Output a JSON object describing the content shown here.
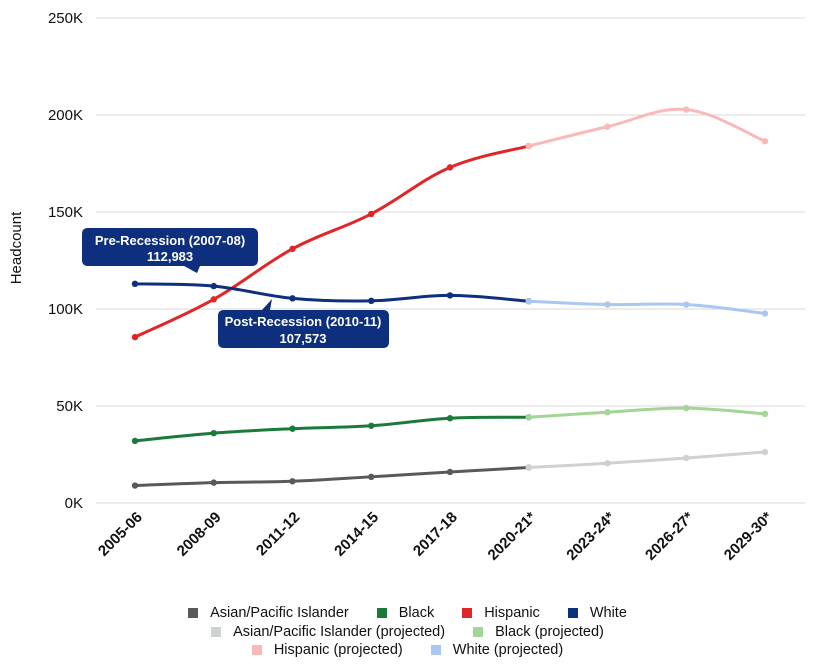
{
  "chart_data": {
    "type": "line",
    "ylabel": "Headcount",
    "xlabel": "",
    "ylim": [
      0,
      250000
    ],
    "yticks": [
      0,
      50000,
      100000,
      150000,
      200000,
      250000
    ],
    "ytick_labels": [
      "0K",
      "50K",
      "100K",
      "150K",
      "200K",
      "250K"
    ],
    "grid": "horizontal",
    "categories": [
      "2005-06",
      "2008-09",
      "2011-12",
      "2014-15",
      "2017-18",
      "2020-21*",
      "2023-24*",
      "2026-27*",
      "2029-30*"
    ],
    "series": [
      {
        "name": "Asian/Pacific Islander",
        "color": "#59595a",
        "values": [
          9000,
          10500,
          11200,
          13500,
          16000,
          18300,
          null,
          null,
          null
        ]
      },
      {
        "name": "Black",
        "color": "#1a7a3a",
        "values": [
          32000,
          36000,
          38300,
          39800,
          43700,
          44200,
          null,
          null,
          null
        ]
      },
      {
        "name": "Hispanic",
        "color": "#e02628",
        "values": [
          85500,
          105000,
          131000,
          149000,
          173000,
          184000,
          null,
          null,
          null
        ]
      },
      {
        "name": "White",
        "color": "#0d2f7d",
        "values": [
          112983,
          111800,
          105500,
          104200,
          107000,
          104000,
          null,
          null,
          null
        ]
      },
      {
        "name": "Asian/Pacific Islander (projected)",
        "color": "#cdd1d2",
        "values": [
          null,
          null,
          null,
          null,
          null,
          18300,
          20500,
          23200,
          26300
        ]
      },
      {
        "name": "Black (projected)",
        "color": "#a3d597",
        "values": [
          null,
          null,
          null,
          null,
          null,
          44200,
          46800,
          48900,
          45900
        ]
      },
      {
        "name": "Hispanic (projected)",
        "color": "#f9b9b8",
        "values": [
          null,
          null,
          null,
          null,
          null,
          184000,
          194000,
          202800,
          186500
        ]
      },
      {
        "name": "White (projected)",
        "color": "#a9c7f2",
        "values": [
          null,
          null,
          null,
          null,
          null,
          104000,
          102300,
          102300,
          97700
        ]
      }
    ],
    "annotations": [
      {
        "title": "Pre-Recession (2007-08)",
        "value": "112,983",
        "category": "2005-06"
      },
      {
        "title": "Post-Recession (2010-11)",
        "value": "107,573",
        "category": "2011-12"
      }
    ],
    "legend_placement": "bottom"
  },
  "legend": {
    "rows": [
      [
        {
          "label": "Asian/Pacific Islander",
          "color": "#59595a"
        },
        {
          "label": "Black",
          "color": "#1a7a3a"
        },
        {
          "label": "Hispanic",
          "color": "#e02628"
        },
        {
          "label": "White",
          "color": "#0d2f7d"
        }
      ],
      [
        {
          "label": "Asian/Pacific Islander (projected)",
          "color": "#cdd1d2"
        },
        {
          "label": "Black (projected)",
          "color": "#a3d597"
        }
      ],
      [
        {
          "label": "Hispanic (projected)",
          "color": "#f9b9b8"
        },
        {
          "label": "White (projected)",
          "color": "#a9c7f2"
        }
      ]
    ]
  },
  "callout_color": "#0d2f7d"
}
